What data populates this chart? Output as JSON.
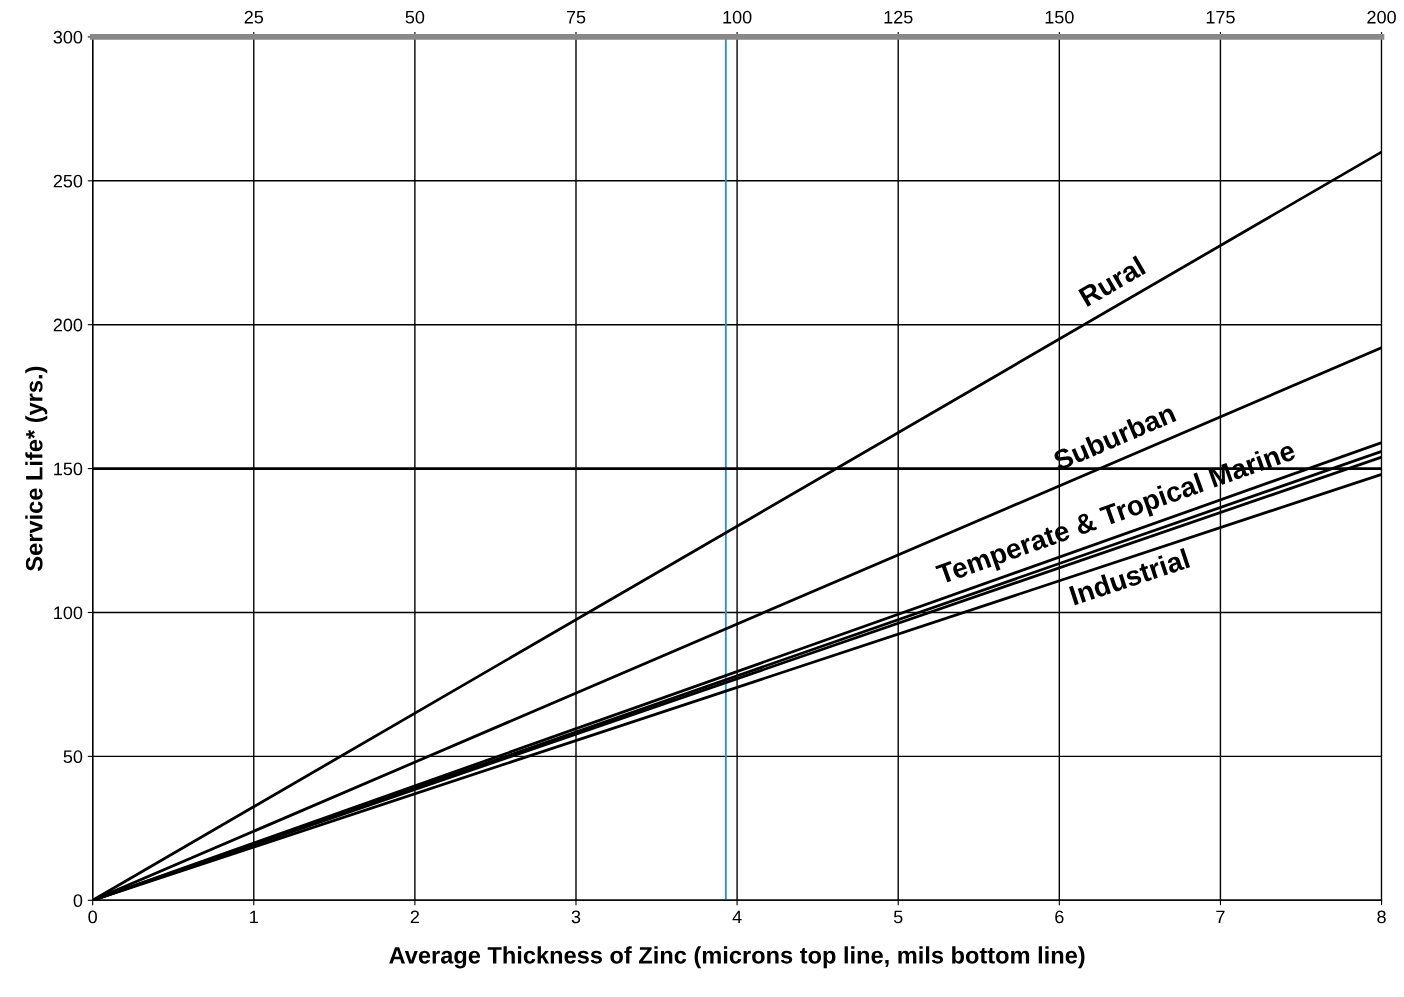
{
  "chart_data": {
    "type": "line",
    "xlabel": "Average Thickness of Zinc (microns top line, mils bottom line)",
    "ylabel": "Service Life* (yrs.)",
    "x": [
      0,
      8
    ],
    "series": [
      {
        "name": "Rural",
        "color": "#000000",
        "values": [
          0,
          260
        ]
      },
      {
        "name": "Suburban",
        "color": "#000000",
        "values": [
          0,
          192
        ]
      },
      {
        "name": "Temperate & Tropical Marine",
        "color": "#000000",
        "values": [
          0,
          159
        ]
      },
      {
        "color": "#000000",
        "values": [
          0,
          156
        ]
      },
      {
        "color": "#000000",
        "values": [
          0,
          154
        ]
      },
      {
        "name": "Industrial",
        "color": "#000000",
        "values": [
          0,
          148
        ]
      }
    ],
    "xlim": [
      0,
      8
    ],
    "xticks": [
      0,
      1,
      2,
      3,
      4,
      5,
      6,
      7,
      8
    ],
    "ylim": [
      0,
      300
    ],
    "yticks": [
      0,
      50,
      100,
      150,
      200,
      250,
      300
    ],
    "x2lim": [
      0,
      200
    ],
    "x2ticks": [
      25,
      50,
      75,
      100,
      125,
      150,
      175,
      200
    ],
    "ref_lines": [
      {
        "axis": "x",
        "value": 3.93,
        "color": "#1f8fe0"
      },
      {
        "axis": "y",
        "value": 150,
        "color": "#000000"
      }
    ],
    "grid": true,
    "legend": false,
    "marker": "none",
    "line_style": "solid"
  }
}
